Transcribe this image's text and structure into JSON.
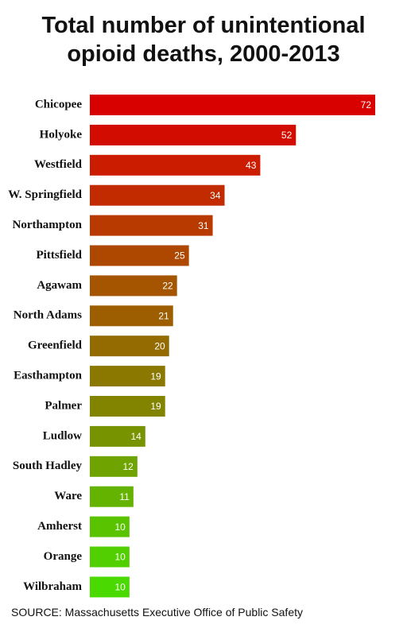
{
  "chart_data": {
    "type": "bar",
    "orientation": "horizontal",
    "title": "Total number of unintentional opioid deaths, 2000-2013",
    "source": "SOURCE: Massachusetts Executive Office of Public Safety",
    "categories": [
      "Chicopee",
      "Holyoke",
      "Westfield",
      "W. Springfield",
      "Northampton",
      "Pittsfield",
      "Agawam",
      "North Adams",
      "Greenfield",
      "Easthampton",
      "Palmer",
      "Ludlow",
      "South Hadley",
      "Ware",
      "Amherst",
      "Orange",
      "Wilbraham"
    ],
    "values": [
      72,
      52,
      43,
      34,
      31,
      25,
      22,
      21,
      20,
      19,
      19,
      14,
      12,
      11,
      10,
      10,
      10
    ],
    "colors": [
      "#d90000",
      "#d20c00",
      "#cc1c00",
      "#c22a00",
      "#b83a00",
      "#ae4800",
      "#a55400",
      "#9c5e00",
      "#936b00",
      "#8a7800",
      "#828400",
      "#789300",
      "#6ea300",
      "#64b300",
      "#5ac300",
      "#52cf00",
      "#4ad900"
    ]
  }
}
